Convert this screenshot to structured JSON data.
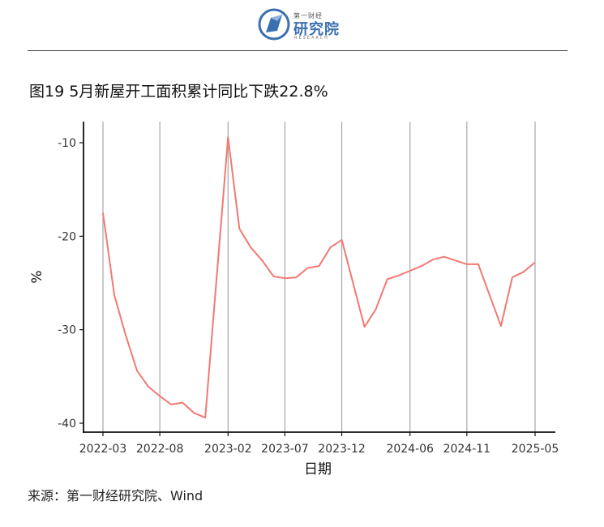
{
  "header": {
    "logo_small_text": "第一财经",
    "logo_main_text": "研究院",
    "logo_sub_text": "RESEARCH",
    "logo_icon": "research-institute-logo-icon"
  },
  "figure_title": "图19 5月新屋开工面积累计同比下跌22.8%",
  "source_text": "来源：第一财经研究院、Wind",
  "colors": {
    "line": "#f07a72",
    "grid": "#a6a6a6",
    "axis": "#111111"
  },
  "chart_data": {
    "type": "line",
    "title": "",
    "xlabel": "日期",
    "ylabel": "%",
    "x_tick_labels": [
      "2022-03",
      "2022-08",
      "2023-02",
      "2023-07",
      "2023-12",
      "2024-06",
      "2024-11",
      "2025-05"
    ],
    "y_ticks": [
      -10,
      -20,
      -30,
      -40
    ],
    "ylim": [
      -41,
      -7.8
    ],
    "grid": "vertical",
    "legend": "none",
    "series": [
      {
        "x": [
          "2022-03",
          "2022-04",
          "2022-05",
          "2022-06",
          "2022-07",
          "2022-08",
          "2022-09",
          "2022-10",
          "2022-11",
          "2022-12",
          "2023-02",
          "2023-03",
          "2023-04",
          "2023-05",
          "2023-06",
          "2023-07",
          "2023-08",
          "2023-09",
          "2023-10",
          "2023-11",
          "2023-12",
          "2024-02",
          "2024-03",
          "2024-04",
          "2024-05",
          "2024-06",
          "2024-07",
          "2024-08",
          "2024-09",
          "2024-10",
          "2024-11",
          "2024-12",
          "2025-02",
          "2025-03",
          "2025-04",
          "2025-05"
        ],
        "values": [
          -17.5,
          -26.3,
          -30.6,
          -34.4,
          -36.1,
          -37.1,
          -38.0,
          -37.8,
          -38.9,
          -39.4,
          -9.4,
          -19.2,
          -21.2,
          -22.6,
          -24.3,
          -24.5,
          -24.4,
          -23.4,
          -23.2,
          -21.2,
          -20.4,
          -29.7,
          -27.8,
          -24.6,
          -24.2,
          -23.7,
          -23.2,
          -22.5,
          -22.2,
          -22.6,
          -23.0,
          -23.0,
          -29.6,
          -24.4,
          -23.8,
          -22.8
        ]
      }
    ]
  }
}
